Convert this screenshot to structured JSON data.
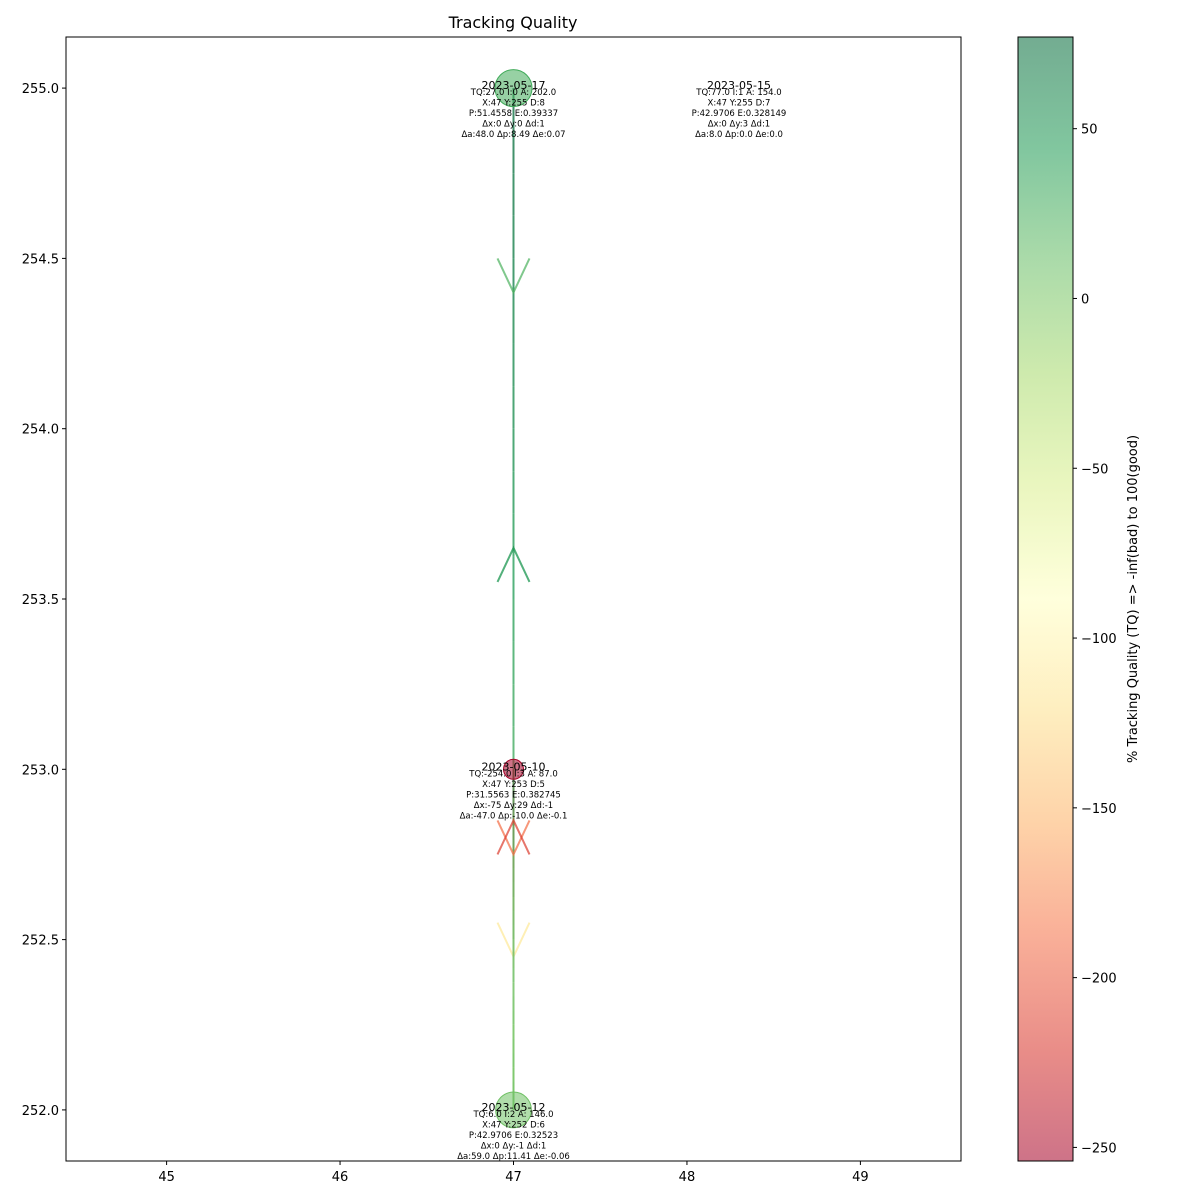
{
  "chart_data": {
    "type": "scatter",
    "title": "Tracking Quality",
    "xlabel": "",
    "ylabel": "",
    "xlim": [
      44.42,
      49.58
    ],
    "ylim": [
      251.85,
      255.15
    ],
    "xticks": [
      45,
      46,
      47,
      48,
      49
    ],
    "yticks": [
      252.0,
      252.5,
      253.0,
      253.5,
      254.0,
      254.5,
      255.0
    ],
    "grid": false,
    "points": [
      {
        "date": "2023-05-17",
        "x": 47,
        "y": 255,
        "tq": 27.0,
        "lines": [
          "TQ:27.0 I:0 A: 202.0",
          "X:47 Y:255 D:8",
          "P:51.4558 E:0.39337",
          "Δx:0 Δy:0 Δd:1",
          "Δa:48.0 Δp:8.49 Δe:0.07"
        ]
      },
      {
        "date": "2023-05-15",
        "x": 47,
        "y": 255,
        "tq": 77.0,
        "lines": [
          "TQ:77.0 I:1 A: 154.0",
          "X:47 Y:255 D:7",
          "P:42.9706 E:0.328149",
          "Δx:0 Δy:3 Δd:1",
          "Δa:8.0 Δp:0.0 Δe:0.0"
        ]
      },
      {
        "date": "2023-05-10",
        "x": 47,
        "y": 253,
        "tq": -254.0,
        "lines": [
          "TQ:-254.0 I:3 A: 87.0",
          "X:47 Y:253 D:5",
          "P:31.5563 E:0.382745",
          "Δx:-75 Δy:29 Δd:-1",
          "Δa:-47.0 Δp:-10.0 Δe:-0.1"
        ]
      },
      {
        "date": "2023-05-12",
        "x": 47,
        "y": 252,
        "tq": 6.0,
        "lines": [
          "TQ:6.0 I:2 A: 146.0",
          "X:47 Y:252 D:6",
          "P:42.9706 E:0.32523",
          "Δx:0 Δy:-1 Δd:1",
          "Δa:59.0 Δp:11.41 Δe:-0.06"
        ]
      }
    ],
    "colorbar": {
      "label": "% Tracking Quality (TQ) =>  -inf(bad) to 100(good)",
      "min": -254,
      "max": 77,
      "ticks": [
        50,
        0,
        -50,
        -100,
        -150,
        -200,
        -250
      ],
      "tick_labels": [
        "50",
        "0",
        "−50",
        "−100",
        "−150",
        "−200",
        "−250"
      ],
      "colormap": "RdYlGn",
      "alpha": 0.55
    }
  }
}
